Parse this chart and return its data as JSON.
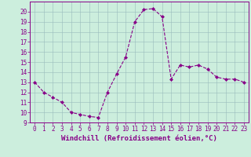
{
  "x": [
    0,
    1,
    2,
    3,
    4,
    5,
    6,
    7,
    8,
    9,
    10,
    11,
    12,
    13,
    14,
    15,
    16,
    17,
    18,
    19,
    20,
    21,
    22,
    23
  ],
  "y": [
    13,
    12,
    11.5,
    11,
    10,
    9.8,
    9.6,
    9.5,
    12,
    13.8,
    15.5,
    19,
    20.2,
    20.3,
    19.5,
    13.3,
    14.7,
    14.5,
    14.7,
    14.3,
    13.5,
    13.3,
    13.3,
    13
  ],
  "line_color": "#880088",
  "marker": "D",
  "marker_size": 2.0,
  "bg_color": "#cceedd",
  "grid_color": "#99bbbb",
  "xlabel": "Windchill (Refroidissement éolien,°C)",
  "ylim": [
    9,
    21
  ],
  "xlim": [
    -0.5,
    23.5
  ],
  "yticks": [
    9,
    10,
    11,
    12,
    13,
    14,
    15,
    16,
    17,
    18,
    19,
    20
  ],
  "xticks": [
    0,
    1,
    2,
    3,
    4,
    5,
    6,
    7,
    8,
    9,
    10,
    11,
    12,
    13,
    14,
    15,
    16,
    17,
    18,
    19,
    20,
    21,
    22,
    23
  ],
  "tick_label_fontsize": 5.5,
  "xlabel_fontsize": 6.5,
  "axis_color": "#880088",
  "linewidth": 0.8
}
